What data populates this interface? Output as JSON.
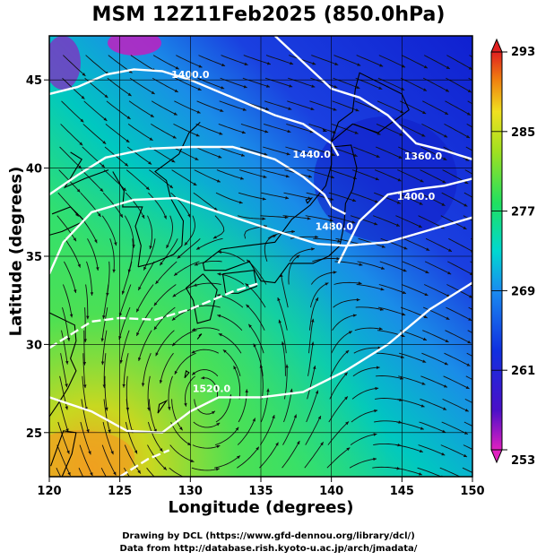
{
  "title": "MSM 12Z11Feb2025 (850.0hPa)",
  "xaxis": {
    "label": "Longitude (degrees)",
    "ticks": [
      "120",
      "125",
      "130",
      "135",
      "140",
      "145",
      "150"
    ],
    "range": [
      120,
      150
    ]
  },
  "yaxis": {
    "label": "Latitude  (degrees)",
    "ticks": [
      "25",
      "30",
      "35",
      "40",
      "45"
    ],
    "range": [
      22.5,
      47.5
    ]
  },
  "colorbar": {
    "ticks": [
      "293",
      "285",
      "277",
      "269",
      "261",
      "253"
    ],
    "range": [
      253,
      293
    ]
  },
  "contours": [
    {
      "label": "1400.0"
    },
    {
      "label": "1440.0"
    },
    {
      "label": "1480.0"
    },
    {
      "label": "1360.0"
    },
    {
      "label": "1400.0"
    },
    {
      "label": "1520.0"
    }
  ],
  "credits": {
    "line1": "Drawing by DCL (https://www.gfd-dennou.org/library/dcl/)",
    "line2": "Data from http://database.rish.kyoto-u.ac.jp/arch/jmadata/"
  },
  "colors": {
    "cold": "#1a2fd6",
    "cool": "#00c8d8",
    "mild": "#2fe070",
    "warm": "#b8e02a",
    "hot": "#f0a020"
  }
}
